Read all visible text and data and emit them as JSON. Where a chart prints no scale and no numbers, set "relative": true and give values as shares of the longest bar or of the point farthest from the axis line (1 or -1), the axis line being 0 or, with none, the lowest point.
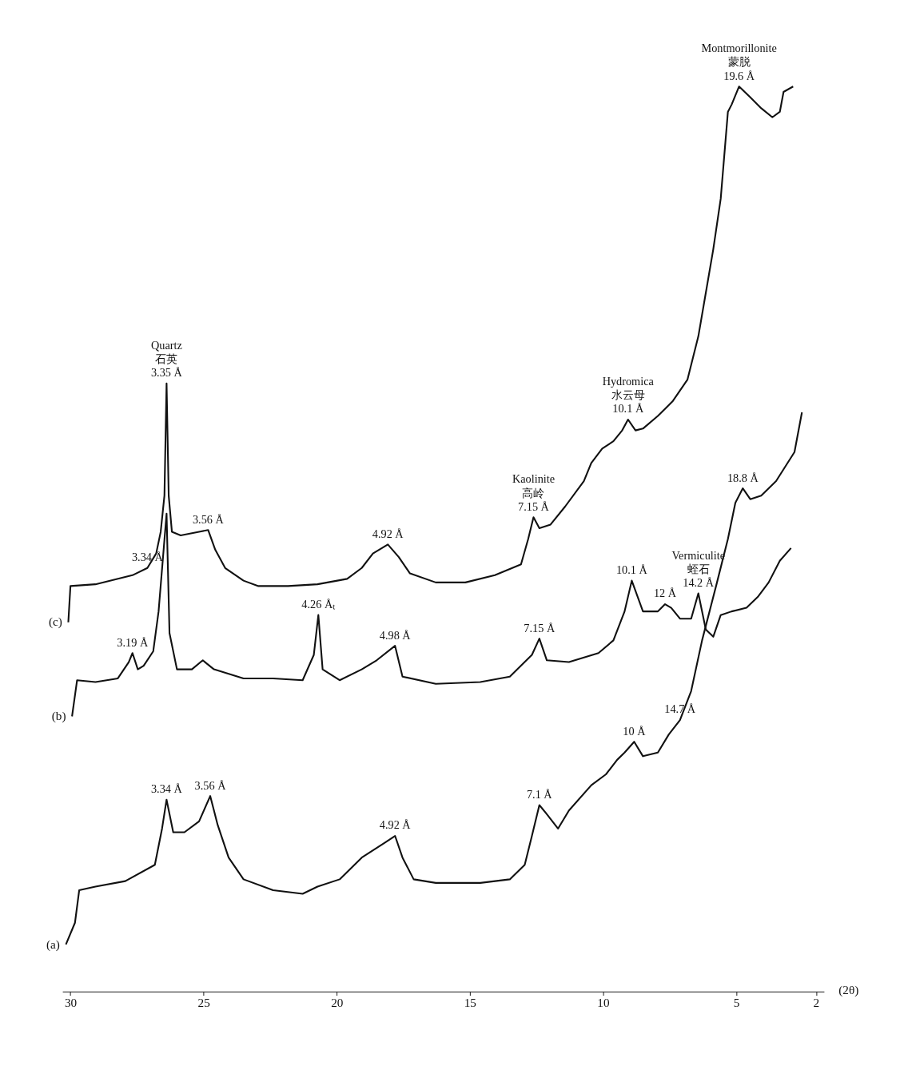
{
  "chart_data": {
    "type": "line",
    "relative": true,
    "xlabel": "(2θ)",
    "xlim": [
      30.3,
      1.7
    ],
    "xticks": [
      30,
      25,
      20,
      15,
      10,
      5,
      2
    ],
    "grid": false,
    "legend": false,
    "marker": "none",
    "line_style": "solid",
    "tick_labels": "x",
    "series": [
      {
        "name": "(c)",
        "color": "#111111",
        "x": [
          30.08,
          30.0,
          29.06,
          27.67,
          27.11,
          26.78,
          26.61,
          26.47,
          26.39,
          26.31,
          26.19,
          25.86,
          25.17,
          24.83,
          24.56,
          24.19,
          23.5,
          22.94,
          21.83,
          20.72,
          19.61,
          19.06,
          18.64,
          18.08,
          17.67,
          17.25,
          16.28,
          15.17,
          14.06,
          13.08,
          12.81,
          12.61,
          12.39,
          11.97,
          11.42,
          10.72,
          10.44,
          10.03,
          9.61,
          9.28,
          9.06,
          8.78,
          8.5,
          7.94,
          7.39,
          6.83,
          6.42,
          6.14,
          5.86,
          5.58,
          5.31,
          5.17,
          4.89,
          4.47,
          4.06,
          3.64,
          3.36,
          3.22,
          2.86
        ],
        "values": [
          0.408,
          0.448,
          0.45,
          0.46,
          0.468,
          0.484,
          0.508,
          0.548,
          0.672,
          0.548,
          0.508,
          0.504,
          0.508,
          0.51,
          0.488,
          0.468,
          0.454,
          0.448,
          0.448,
          0.45,
          0.456,
          0.468,
          0.484,
          0.494,
          0.48,
          0.462,
          0.452,
          0.452,
          0.46,
          0.472,
          0.5,
          0.524,
          0.512,
          0.516,
          0.536,
          0.564,
          0.584,
          0.6,
          0.608,
          0.62,
          0.632,
          0.62,
          0.622,
          0.636,
          0.652,
          0.676,
          0.724,
          0.772,
          0.82,
          0.876,
          0.972,
          0.98,
          1.0,
          0.988,
          0.976,
          0.966,
          0.972,
          0.994,
          1.0
        ]
      },
      {
        "name": "(b)",
        "color": "#111111",
        "x": [
          29.94,
          29.75,
          29.06,
          28.22,
          27.81,
          27.67,
          27.47,
          27.25,
          26.89,
          26.69,
          26.39,
          26.28,
          26.0,
          25.44,
          25.03,
          24.61,
          23.5,
          22.39,
          21.28,
          20.86,
          20.69,
          20.53,
          19.89,
          19.06,
          18.5,
          17.81,
          17.53,
          16.28,
          14.61,
          13.5,
          12.67,
          12.39,
          12.11,
          11.28,
          10.17,
          9.61,
          9.19,
          8.92,
          8.5,
          7.94,
          7.67,
          7.44,
          7.11,
          6.69,
          6.42,
          6.14,
          5.86,
          5.58,
          5.17,
          4.61,
          4.19,
          3.78,
          3.36,
          2.94
        ],
        "values": [
          0.304,
          0.344,
          0.342,
          0.346,
          0.364,
          0.374,
          0.356,
          0.36,
          0.376,
          0.42,
          0.528,
          0.396,
          0.356,
          0.356,
          0.366,
          0.356,
          0.346,
          0.346,
          0.344,
          0.372,
          0.416,
          0.356,
          0.344,
          0.356,
          0.366,
          0.382,
          0.348,
          0.34,
          0.342,
          0.348,
          0.372,
          0.39,
          0.366,
          0.364,
          0.374,
          0.388,
          0.42,
          0.454,
          0.42,
          0.42,
          0.428,
          0.424,
          0.412,
          0.412,
          0.44,
          0.4,
          0.392,
          0.416,
          0.42,
          0.424,
          0.436,
          0.452,
          0.476,
          0.49
        ]
      },
      {
        "name": "(a)",
        "color": "#111111",
        "x": [
          30.17,
          29.83,
          29.67,
          29.06,
          27.94,
          26.83,
          26.56,
          26.39,
          26.14,
          25.72,
          25.17,
          24.75,
          24.47,
          24.06,
          23.5,
          22.39,
          21.28,
          20.72,
          19.89,
          19.06,
          18.22,
          17.81,
          17.53,
          17.11,
          16.28,
          14.61,
          13.5,
          12.94,
          12.67,
          12.39,
          12.11,
          11.69,
          11.28,
          10.44,
          9.89,
          9.47,
          9.19,
          8.83,
          8.5,
          7.94,
          7.53,
          7.11,
          6.69,
          6.28,
          6.0,
          5.72,
          5.31,
          5.03,
          4.75,
          4.47,
          4.06,
          3.5,
          2.81,
          2.53
        ],
        "values": [
          0.052,
          0.076,
          0.112,
          0.116,
          0.122,
          0.14,
          0.18,
          0.212,
          0.176,
          0.176,
          0.188,
          0.216,
          0.184,
          0.148,
          0.124,
          0.112,
          0.108,
          0.116,
          0.124,
          0.148,
          0.164,
          0.172,
          0.148,
          0.124,
          0.12,
          0.12,
          0.124,
          0.14,
          0.172,
          0.206,
          0.196,
          0.18,
          0.2,
          0.228,
          0.24,
          0.256,
          0.264,
          0.276,
          0.26,
          0.264,
          0.284,
          0.3,
          0.332,
          0.388,
          0.42,
          0.452,
          0.5,
          0.54,
          0.556,
          0.544,
          0.548,
          0.564,
          0.596,
          0.64
        ]
      }
    ],
    "annotations": [
      {
        "text": "Montmorillonite\n蒙脱\n19.6 Å",
        "x": 4.89,
        "y": 1.0
      },
      {
        "text": "Quartz\n石英\n3.35 Å",
        "x": 26.39,
        "y": 0.672
      },
      {
        "text": "Hydromica\n水云母\n10.1 Å",
        "x": 9.06,
        "y": 0.632
      },
      {
        "text": "Kaolinite\n高岭\n7.15 Å",
        "x": 12.61,
        "y": 0.524
      },
      {
        "text": "3.34 Å",
        "x": 27.11,
        "y": 0.468
      },
      {
        "text": "3.56 Å",
        "x": 24.83,
        "y": 0.51
      },
      {
        "text": "4.92 Å",
        "x": 18.08,
        "y": 0.494
      },
      {
        "text": "4.26 Åₜ",
        "x": 20.69,
        "y": 0.416
      },
      {
        "text": "3.19 Å",
        "x": 27.67,
        "y": 0.374
      },
      {
        "text": "4.98 Å",
        "x": 17.81,
        "y": 0.382
      },
      {
        "text": "7.15 Å",
        "x": 12.39,
        "y": 0.39
      },
      {
        "text": "10.1 Å",
        "x": 8.92,
        "y": 0.454
      },
      {
        "text": "12 Å",
        "x": 7.67,
        "y": 0.428
      },
      {
        "text": "Vermiculite\n蛭石\n14.2 Å",
        "x": 6.42,
        "y": 0.44
      },
      {
        "text": "18.8 Å",
        "x": 4.75,
        "y": 0.556
      },
      {
        "text": "14.7 Å",
        "x": 7.11,
        "y": 0.3
      },
      {
        "text": "10 Å",
        "x": 8.83,
        "y": 0.276
      },
      {
        "text": "7.1 Å",
        "x": 12.39,
        "y": 0.206
      },
      {
        "text": "3.34 Å",
        "x": 26.39,
        "y": 0.212
      },
      {
        "text": "3.56 Å",
        "x": 24.75,
        "y": 0.216
      },
      {
        "text": "4.92 Å",
        "x": 17.81,
        "y": 0.172
      }
    ]
  }
}
